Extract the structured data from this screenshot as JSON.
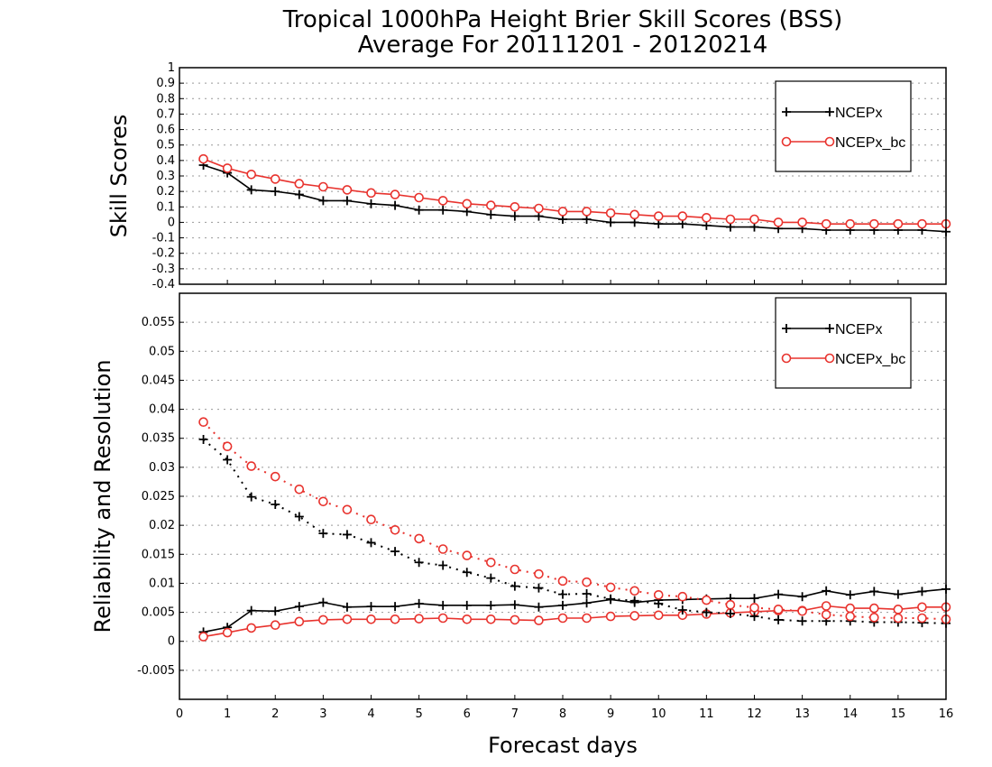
{
  "title": {
    "line1": "Tropical 1000hPa Height Brier Skill Scores (BSS)",
    "line2": "Average For 20111201 - 20120214"
  },
  "colors": {
    "ncepx": "#000000",
    "ncepx_bc": "#e8332e",
    "grid": "#999999"
  },
  "chart_data": [
    {
      "type": "line",
      "panel": "top",
      "xlabel": "Forecast days",
      "ylabel": "Skill Scores",
      "xlim": [
        0,
        16
      ],
      "ylim": [
        -0.4,
        1
      ],
      "xticks": [
        "0",
        "1",
        "2",
        "3",
        "4",
        "5",
        "6",
        "7",
        "8",
        "9",
        "10",
        "11",
        "12",
        "13",
        "14",
        "15",
        "16"
      ],
      "yticks": [
        "-0.4",
        "-0.3",
        "-0.2",
        "-0.1",
        "0",
        "0.1",
        "0.2",
        "0.3",
        "0.4",
        "0.5",
        "0.6",
        "0.7",
        "0.8",
        "0.9",
        "1"
      ],
      "grid": true,
      "legend_position": "top-right",
      "x": [
        0.5,
        1,
        1.5,
        2,
        2.5,
        3,
        3.5,
        4,
        4.5,
        5,
        5.5,
        6,
        6.5,
        7,
        7.5,
        8,
        8.5,
        9,
        9.5,
        10,
        10.5,
        11,
        11.5,
        12,
        12.5,
        13,
        13.5,
        14,
        14.5,
        15,
        15.5,
        16
      ],
      "series": [
        {
          "name": "NCEPx",
          "style": "solid",
          "marker": "plus",
          "values": [
            0.37,
            0.32,
            0.21,
            0.2,
            0.18,
            0.14,
            0.14,
            0.12,
            0.11,
            0.08,
            0.08,
            0.07,
            0.05,
            0.04,
            0.04,
            0.02,
            0.02,
            0.0,
            0.0,
            -0.01,
            -0.01,
            -0.02,
            -0.03,
            -0.03,
            -0.04,
            -0.04,
            -0.05,
            -0.05,
            -0.05,
            -0.05,
            -0.05,
            -0.06
          ]
        },
        {
          "name": "NCEPx_bc",
          "style": "solid",
          "marker": "circle",
          "values": [
            0.41,
            0.35,
            0.31,
            0.28,
            0.25,
            0.23,
            0.21,
            0.19,
            0.18,
            0.16,
            0.14,
            0.12,
            0.11,
            0.1,
            0.09,
            0.07,
            0.07,
            0.06,
            0.05,
            0.04,
            0.04,
            0.03,
            0.02,
            0.02,
            0.0,
            0.0,
            -0.01,
            -0.01,
            -0.01,
            -0.01,
            -0.01,
            -0.01
          ]
        }
      ]
    },
    {
      "type": "line",
      "panel": "bottom",
      "xlabel": "Forecast days",
      "ylabel": "Reliability and Resolution",
      "xlim": [
        0,
        16
      ],
      "ylim": [
        -0.01,
        0.06
      ],
      "xticks": [
        "0",
        "1",
        "2",
        "3",
        "4",
        "5",
        "6",
        "7",
        "8",
        "9",
        "10",
        "11",
        "12",
        "13",
        "14",
        "15",
        "16"
      ],
      "yticks": [
        "-0.005",
        "0",
        "0.005",
        "0.01",
        "0.015",
        "0.02",
        "0.025",
        "0.03",
        "0.035",
        "0.04",
        "0.045",
        "0.05",
        "0.055"
      ],
      "grid": true,
      "legend_position": "top-right",
      "x": [
        0.5,
        1,
        1.5,
        2,
        2.5,
        3,
        3.5,
        4,
        4.5,
        5,
        5.5,
        6,
        6.5,
        7,
        7.5,
        8,
        8.5,
        9,
        9.5,
        10,
        10.5,
        11,
        11.5,
        12,
        12.5,
        13,
        13.5,
        14,
        14.5,
        15,
        15.5,
        16
      ],
      "series": [
        {
          "name": "NCEPx",
          "style": "solid",
          "marker": "plus",
          "values": [
            0.0016,
            0.0024,
            0.0053,
            0.0052,
            0.006,
            0.0067,
            0.0059,
            0.006,
            0.006,
            0.0065,
            0.0062,
            0.0062,
            0.0062,
            0.0063,
            0.0059,
            0.0062,
            0.0066,
            0.0072,
            0.0067,
            0.0071,
            0.0072,
            0.0073,
            0.0074,
            0.0074,
            0.0081,
            0.0077,
            0.0087,
            0.008,
            0.0086,
            0.0081,
            0.0086,
            0.009
          ]
        },
        {
          "name": "NCEPx_bc",
          "style": "solid",
          "marker": "circle",
          "values": [
            0.0008,
            0.0015,
            0.0023,
            0.0028,
            0.0034,
            0.0037,
            0.0038,
            0.0038,
            0.0038,
            0.0039,
            0.004,
            0.0038,
            0.0038,
            0.0037,
            0.0036,
            0.004,
            0.004,
            0.0043,
            0.0044,
            0.0045,
            0.0045,
            0.0047,
            0.0049,
            0.0051,
            0.0053,
            0.0053,
            0.0061,
            0.0057,
            0.0057,
            0.0055,
            0.0059,
            0.0059
          ]
        },
        {
          "name": "NCEPx",
          "style": "dotted",
          "marker": "plus",
          "values": [
            0.0348,
            0.0313,
            0.0249,
            0.0236,
            0.0215,
            0.0186,
            0.0184,
            0.017,
            0.0155,
            0.0136,
            0.0131,
            0.0119,
            0.0109,
            0.0095,
            0.0092,
            0.0081,
            0.0082,
            0.0073,
            0.007,
            0.0065,
            0.0054,
            0.005,
            0.0048,
            0.0043,
            0.0037,
            0.0035,
            0.0035,
            0.0035,
            0.0033,
            0.0033,
            0.0032,
            0.0031
          ]
        },
        {
          "name": "NCEPx_bc",
          "style": "dotted",
          "marker": "circle",
          "values": [
            0.0378,
            0.0336,
            0.0302,
            0.0284,
            0.0262,
            0.0241,
            0.0227,
            0.021,
            0.0192,
            0.0177,
            0.0159,
            0.0148,
            0.0136,
            0.0124,
            0.0116,
            0.0104,
            0.0102,
            0.0093,
            0.0087,
            0.008,
            0.0077,
            0.0071,
            0.0063,
            0.0058,
            0.0055,
            0.0052,
            0.0046,
            0.0043,
            0.0041,
            0.004,
            0.004,
            0.0038
          ]
        }
      ]
    }
  ]
}
